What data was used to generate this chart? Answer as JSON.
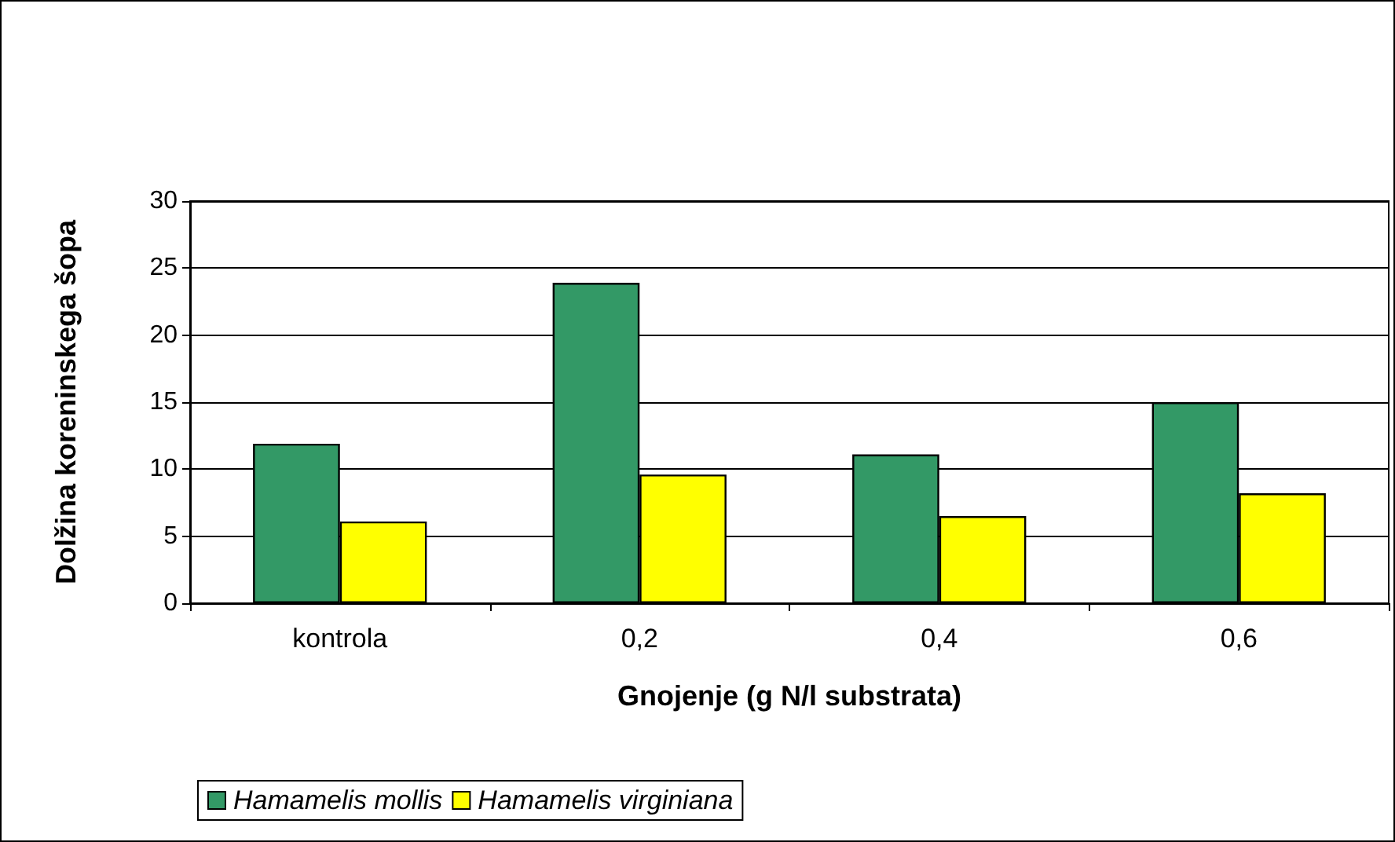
{
  "chart_data": {
    "type": "bar",
    "xlabel": "Gnojenje (g N/l substrata)",
    "ylabel": "Dolžina koreninskega šopa",
    "categories": [
      "kontrola",
      "0,2",
      "0,4",
      "0,6"
    ],
    "series": [
      {
        "name": "Hamamelis mollis",
        "color": "#339966",
        "values": [
          11.9,
          23.9,
          11.1,
          15.0
        ]
      },
      {
        "name": "Hamamelis virginiana",
        "color": "#ffff00",
        "values": [
          6.1,
          9.6,
          6.5,
          8.2
        ]
      }
    ],
    "ylim": [
      0,
      30
    ],
    "yticks": [
      0,
      5,
      10,
      15,
      20,
      25,
      30
    ],
    "grid": "y",
    "legend": "bottom left"
  }
}
